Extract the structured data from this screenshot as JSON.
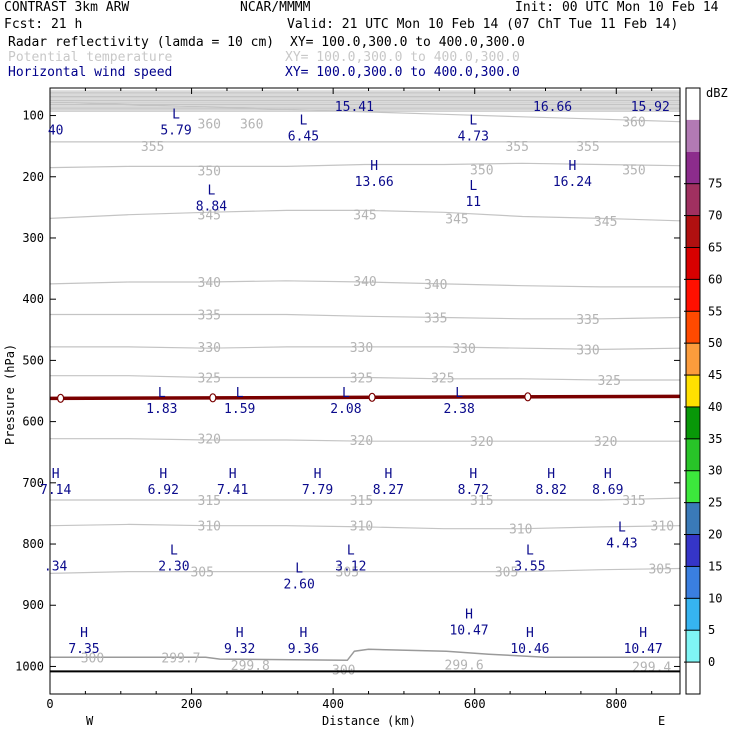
{
  "header": {
    "title": "CONTRAST  3km ARW",
    "center": "NCAR/MMMM",
    "init": "Init: 00 UTC Mon 10 Feb 14",
    "fcst": "Fcst:   21 h",
    "valid": "Valid: 21 UTC Mon 10 Feb 14 (07 ChT Tue 11 Feb 14)",
    "field1": "Radar reflectivity (lamda = 10 cm)",
    "field1_xy": "XY= 100.0,300.0 to 400.0,300.0",
    "field2": "Potential temperature",
    "field2_xy": "XY= 100.0,300.0 to 400.0,300.0",
    "field3": "Horizontal wind speed",
    "field3_xy": "XY= 100.0,300.0 to 400.0,300.0"
  },
  "chart_data": {
    "type": "cross-section",
    "xlabel": "Distance (km)",
    "ylabel": "Pressure (hPa)",
    "xlim": [
      0,
      890
    ],
    "ylim": [
      1045,
      55
    ],
    "x_ticks": [
      0,
      200,
      400,
      600,
      800
    ],
    "y_ticks": [
      100,
      200,
      300,
      400,
      500,
      600,
      700,
      800,
      900,
      1000
    ],
    "west_label": "W",
    "east_label": "E",
    "colorbar": {
      "unit": "dBZ",
      "levels": [
        0,
        5,
        10,
        15,
        20,
        25,
        30,
        35,
        40,
        45,
        50,
        55,
        60,
        65,
        70,
        75
      ],
      "colors": [
        "#ffffff",
        "#7ff5f5",
        "#36b4f0",
        "#3a7fe0",
        "#3535c8",
        "#3a7ab8",
        "#3ce83c",
        "#28c428",
        "#089808",
        "#ffe000",
        "#fc9c3c",
        "#ff4a00",
        "#ff1000",
        "#d80000",
        "#b01010",
        "#a03060",
        "#8c2c8c",
        "#b27ab4",
        "#ffffff"
      ]
    },
    "theta_contours": [
      {
        "value": 360,
        "p": [
          78,
          82,
          86,
          90,
          94,
          98,
          102,
          106,
          110
        ]
      },
      {
        "value": 355,
        "p": [
          143,
          143,
          143,
          143,
          143,
          143,
          143,
          143,
          143
        ]
      },
      {
        "value": 350,
        "p": [
          185,
          183,
          183,
          183,
          180,
          180,
          178,
          180,
          182
        ]
      },
      {
        "value": 345,
        "p": [
          268,
          262,
          258,
          255,
          255,
          258,
          265,
          268,
          272
        ]
      },
      {
        "value": 340,
        "p": [
          375,
          372,
          372,
          370,
          372,
          375,
          378,
          380,
          380
        ]
      },
      {
        "value": 335,
        "p": [
          425,
          425,
          425,
          425,
          428,
          430,
          432,
          432,
          430
        ]
      },
      {
        "value": 330,
        "p": [
          478,
          478,
          480,
          478,
          478,
          478,
          480,
          482,
          480
        ]
      },
      {
        "value": 325,
        "p": [
          525,
          525,
          528,
          528,
          528,
          530,
          530,
          532,
          532
        ]
      },
      {
        "value": 320,
        "p": [
          628,
          628,
          630,
          630,
          632,
          632,
          632,
          632,
          632
        ]
      },
      {
        "value": 315,
        "p": [
          728,
          728,
          728,
          728,
          728,
          728,
          728,
          728,
          725
        ]
      },
      {
        "value": 310,
        "p": [
          770,
          768,
          770,
          770,
          772,
          775,
          775,
          772,
          770
        ]
      },
      {
        "value": 305,
        "p": [
          848,
          845,
          845,
          845,
          845,
          845,
          845,
          842,
          840
        ]
      }
    ],
    "theta_labels": [
      {
        "text": "360",
        "x": 225,
        "p": 113
      },
      {
        "text": "360",
        "x": 285,
        "p": 113
      },
      {
        "text": "360",
        "x": 825,
        "p": 110
      },
      {
        "text": "355",
        "x": 145,
        "p": 150
      },
      {
        "text": "355",
        "x": 660,
        "p": 150
      },
      {
        "text": "355",
        "x": 760,
        "p": 150
      },
      {
        "text": "350",
        "x": 225,
        "p": 190
      },
      {
        "text": "350",
        "x": 610,
        "p": 188
      },
      {
        "text": "350",
        "x": 825,
        "p": 188
      },
      {
        "text": "345",
        "x": 225,
        "p": 262
      },
      {
        "text": "345",
        "x": 445,
        "p": 262
      },
      {
        "text": "345",
        "x": 575,
        "p": 268
      },
      {
        "text": "345",
        "x": 785,
        "p": 272
      },
      {
        "text": "340",
        "x": 225,
        "p": 372
      },
      {
        "text": "340",
        "x": 445,
        "p": 370
      },
      {
        "text": "340",
        "x": 545,
        "p": 375
      },
      {
        "text": "335",
        "x": 225,
        "p": 425
      },
      {
        "text": "335",
        "x": 545,
        "p": 430
      },
      {
        "text": "335",
        "x": 760,
        "p": 432
      },
      {
        "text": "330",
        "x": 225,
        "p": 478
      },
      {
        "text": "330",
        "x": 440,
        "p": 478
      },
      {
        "text": "330",
        "x": 585,
        "p": 480
      },
      {
        "text": "330",
        "x": 760,
        "p": 482
      },
      {
        "text": "325",
        "x": 225,
        "p": 528
      },
      {
        "text": "325",
        "x": 440,
        "p": 528
      },
      {
        "text": "325",
        "x": 555,
        "p": 528
      },
      {
        "text": "325",
        "x": 790,
        "p": 532
      },
      {
        "text": "320",
        "x": 225,
        "p": 628
      },
      {
        "text": "320",
        "x": 440,
        "p": 630
      },
      {
        "text": "320",
        "x": 610,
        "p": 632
      },
      {
        "text": "320",
        "x": 785,
        "p": 632
      },
      {
        "text": "315",
        "x": 225,
        "p": 728
      },
      {
        "text": "315",
        "x": 440,
        "p": 728
      },
      {
        "text": "315",
        "x": 610,
        "p": 728
      },
      {
        "text": "315",
        "x": 825,
        "p": 728
      },
      {
        "text": "310",
        "x": 225,
        "p": 770
      },
      {
        "text": "310",
        "x": 440,
        "p": 770
      },
      {
        "text": "310",
        "x": 665,
        "p": 775
      },
      {
        "text": "310",
        "x": 865,
        "p": 770
      },
      {
        "text": "305",
        "x": 215,
        "p": 845
      },
      {
        "text": "305",
        "x": 420,
        "p": 845
      },
      {
        "text": "305",
        "x": 645,
        "p": 845
      },
      {
        "text": "305",
        "x": 862,
        "p": 840
      },
      {
        "text": "300",
        "x": 60,
        "p": 985
      },
      {
        "text": "300",
        "x": 415,
        "p": 1005
      },
      {
        "text": "299.7",
        "x": 185,
        "p": 985
      },
      {
        "text": "299.8",
        "x": 283,
        "p": 998
      },
      {
        "text": "299.6",
        "x": 585,
        "p": 997
      },
      {
        "text": "299.4",
        "x": 850,
        "p": 1000
      }
    ],
    "freezing_level_p": 562,
    "freezing_level_markers": [
      15,
      230,
      455,
      675
    ],
    "ground_p": 1008,
    "wind_extrema": [
      {
        "type": "",
        "value": "15.41",
        "x": 430,
        "p": 70
      },
      {
        "type": "",
        "value": "16.66",
        "x": 710,
        "p": 70
      },
      {
        "type": "",
        "value": "15.92",
        "x": 848,
        "p": 70
      },
      {
        "type": "",
        "value": "40",
        "x": 8,
        "p": 108
      },
      {
        "type": "L",
        "value": "5.79",
        "x": 178,
        "p": 108
      },
      {
        "type": "L",
        "value": "6.45",
        "x": 358,
        "p": 118
      },
      {
        "type": "L",
        "value": "4.73",
        "x": 598,
        "p": 118
      },
      {
        "type": "H",
        "value": "13.66",
        "x": 458,
        "p": 192
      },
      {
        "type": "L",
        "value": "11",
        "x": 598,
        "p": 225
      },
      {
        "type": "H",
        "value": "16.24",
        "x": 738,
        "p": 192
      },
      {
        "type": "L",
        "value": "8.84",
        "x": 228,
        "p": 232
      },
      {
        "type": "L",
        "value": "1.83",
        "x": 158,
        "p": 563
      },
      {
        "type": "L",
        "value": "1.59",
        "x": 268,
        "p": 563
      },
      {
        "type": "L",
        "value": "2.08",
        "x": 418,
        "p": 563
      },
      {
        "type": "L",
        "value": "2.38",
        "x": 578,
        "p": 563
      },
      {
        "type": "H",
        "value": "7.14",
        "x": 8,
        "p": 695
      },
      {
        "type": "H",
        "value": "6.92",
        "x": 160,
        "p": 695
      },
      {
        "type": "H",
        "value": "7.41",
        "x": 258,
        "p": 695
      },
      {
        "type": "H",
        "value": "7.79",
        "x": 378,
        "p": 695
      },
      {
        "type": "H",
        "value": "8.27",
        "x": 478,
        "p": 695
      },
      {
        "type": "H",
        "value": "8.72",
        "x": 598,
        "p": 695
      },
      {
        "type": "H",
        "value": "8.82",
        "x": 708,
        "p": 695
      },
      {
        "type": "H",
        "value": "8.69",
        "x": 788,
        "p": 695
      },
      {
        "type": "L",
        "value": "4.43",
        "x": 808,
        "p": 783
      },
      {
        "type": "",
        "value": ".34",
        "x": 8,
        "p": 820
      },
      {
        "type": "L",
        "value": "2.30",
        "x": 175,
        "p": 820
      },
      {
        "type": "L",
        "value": "3.12",
        "x": 425,
        "p": 820
      },
      {
        "type": "L",
        "value": "3.55",
        "x": 678,
        "p": 820
      },
      {
        "type": "L",
        "value": "2.60",
        "x": 352,
        "p": 850
      },
      {
        "type": "H",
        "value": "10.47",
        "x": 592,
        "p": 925
      },
      {
        "type": "H",
        "value": "7.35",
        "x": 48,
        "p": 955
      },
      {
        "type": "H",
        "value": "9.32",
        "x": 268,
        "p": 955
      },
      {
        "type": "H",
        "value": "9.36",
        "x": 358,
        "p": 955
      },
      {
        "type": "H",
        "value": "10.46",
        "x": 678,
        "p": 955
      },
      {
        "type": "H",
        "value": "10.47",
        "x": 838,
        "p": 955
      }
    ]
  }
}
